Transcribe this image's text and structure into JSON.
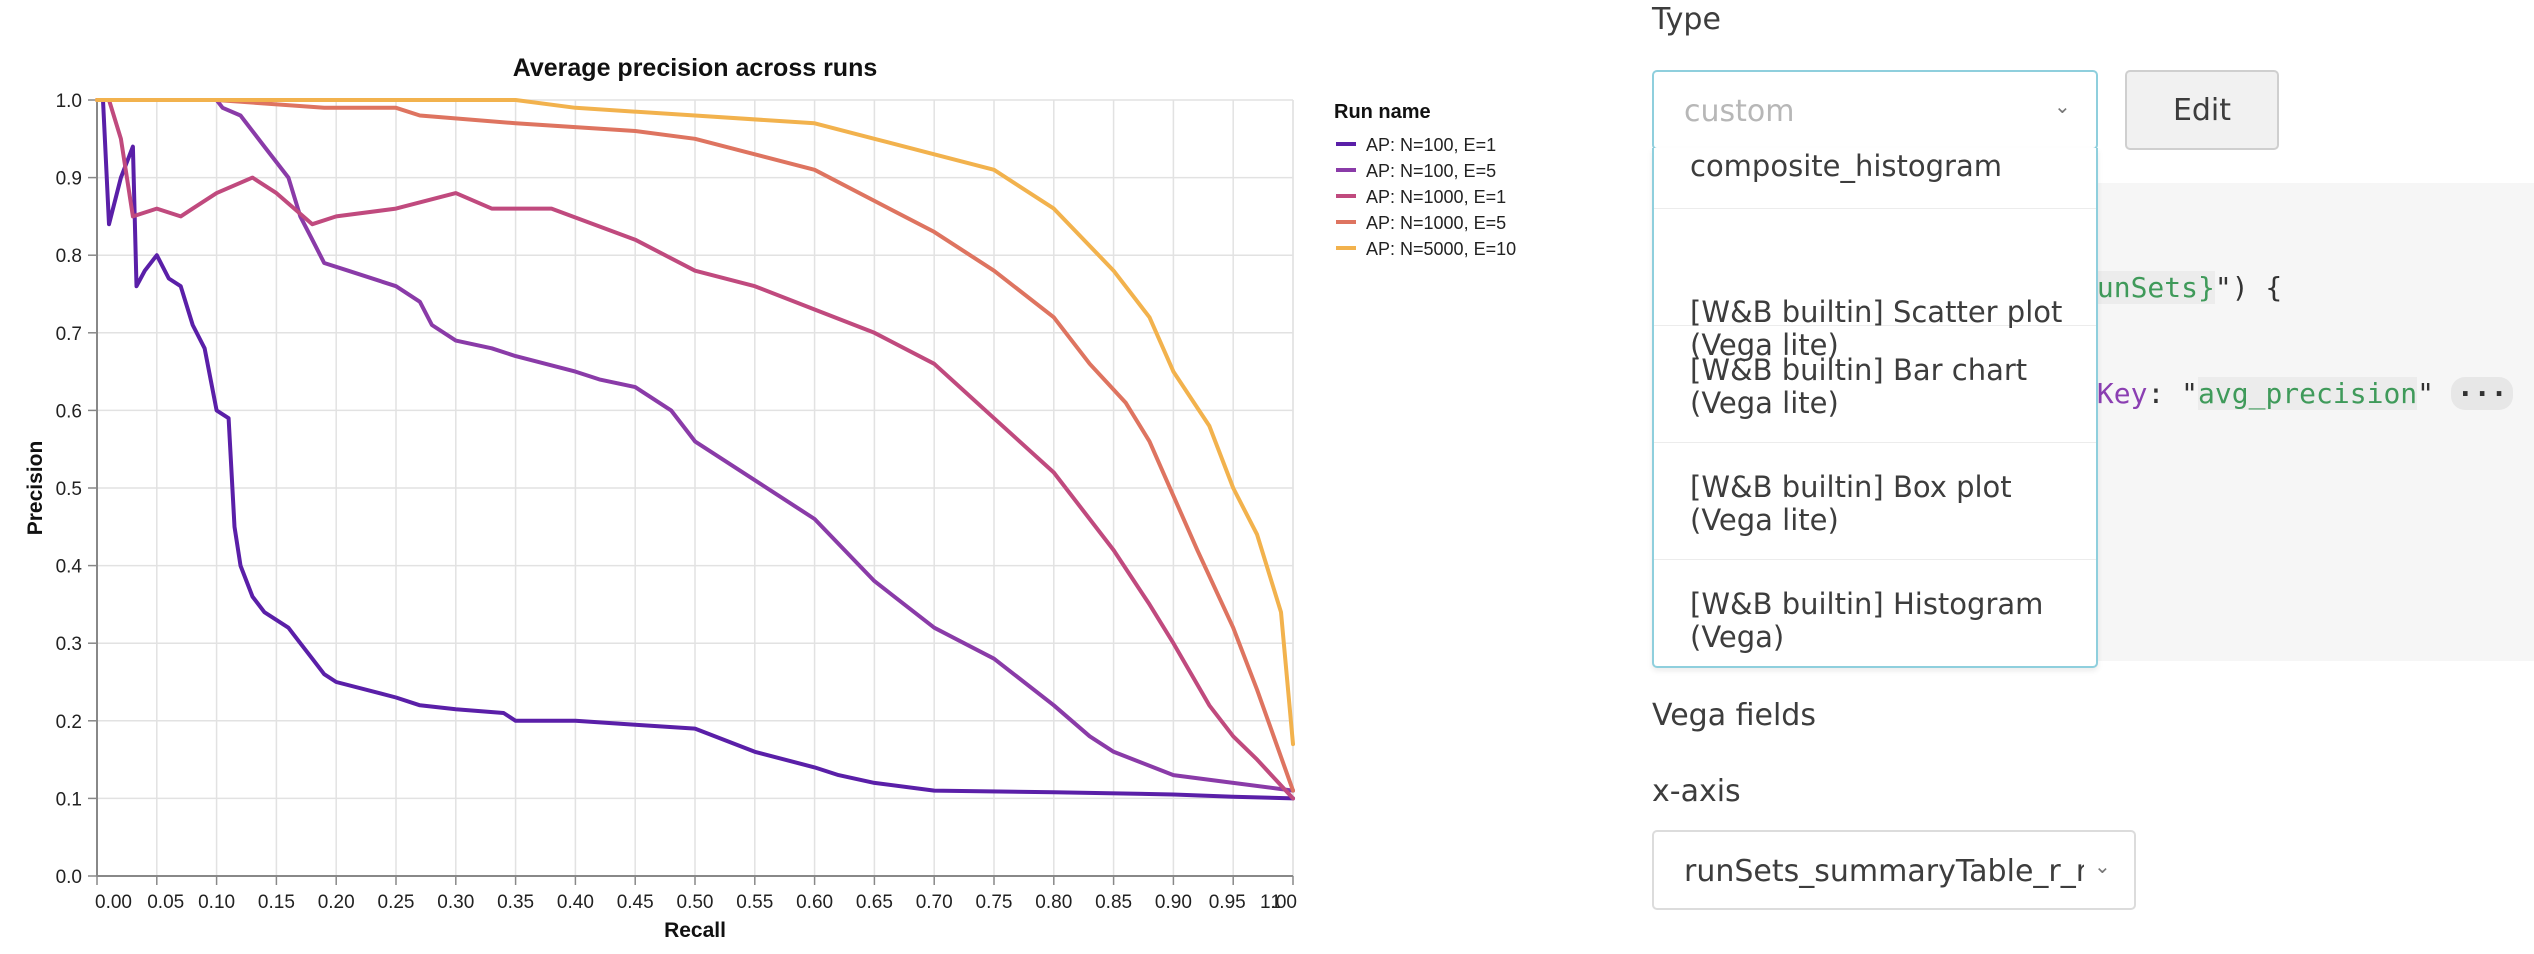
{
  "chart_data": {
    "type": "line",
    "title": "Average precision across runs",
    "xlabel": "Recall",
    "ylabel": "Precision",
    "xlim": [
      0,
      1
    ],
    "ylim": [
      0,
      1
    ],
    "x_ticks": [
      "0.00",
      "0.05",
      "0.10",
      "0.15",
      "0.20",
      "0.25",
      "0.30",
      "0.35",
      "0.40",
      "0.45",
      "0.50",
      "0.55",
      "0.60",
      "0.65",
      "0.70",
      "0.75",
      "0.80",
      "0.85",
      "0.90",
      "0.95",
      "1",
      "1.00"
    ],
    "y_ticks": [
      "0.0",
      "0.1",
      "0.2",
      "0.3",
      "0.4",
      "0.5",
      "0.6",
      "0.7",
      "0.8",
      "0.9",
      "1.0"
    ],
    "grid": true,
    "legend_title": "Run name",
    "legend_position": "right",
    "series": [
      {
        "name": "AP: N=100, E=1",
        "color": "#5a1fa8",
        "points": [
          [
            0.005,
            1.0
          ],
          [
            0.01,
            0.84
          ],
          [
            0.02,
            0.9
          ],
          [
            0.03,
            0.94
          ],
          [
            0.033,
            0.76
          ],
          [
            0.04,
            0.78
          ],
          [
            0.05,
            0.8
          ],
          [
            0.06,
            0.77
          ],
          [
            0.07,
            0.76
          ],
          [
            0.08,
            0.71
          ],
          [
            0.09,
            0.68
          ],
          [
            0.1,
            0.6
          ],
          [
            0.11,
            0.59
          ],
          [
            0.115,
            0.45
          ],
          [
            0.12,
            0.4
          ],
          [
            0.13,
            0.36
          ],
          [
            0.14,
            0.34
          ],
          [
            0.15,
            0.33
          ],
          [
            0.16,
            0.32
          ],
          [
            0.17,
            0.3
          ],
          [
            0.18,
            0.28
          ],
          [
            0.19,
            0.26
          ],
          [
            0.2,
            0.25
          ],
          [
            0.25,
            0.23
          ],
          [
            0.27,
            0.22
          ],
          [
            0.3,
            0.215
          ],
          [
            0.34,
            0.21
          ],
          [
            0.35,
            0.2
          ],
          [
            0.4,
            0.2
          ],
          [
            0.45,
            0.195
          ],
          [
            0.5,
            0.19
          ],
          [
            0.55,
            0.16
          ],
          [
            0.6,
            0.14
          ],
          [
            0.62,
            0.13
          ],
          [
            0.65,
            0.12
          ],
          [
            0.7,
            0.11
          ],
          [
            0.8,
            0.108
          ],
          [
            0.9,
            0.105
          ],
          [
            0.95,
            0.102
          ],
          [
            1.0,
            0.1
          ]
        ]
      },
      {
        "name": "AP: N=100, E=5",
        "color": "#8a3ba8",
        "points": [
          [
            0.0,
            1.0
          ],
          [
            0.1,
            1.0
          ],
          [
            0.105,
            0.99
          ],
          [
            0.12,
            0.98
          ],
          [
            0.14,
            0.94
          ],
          [
            0.16,
            0.9
          ],
          [
            0.17,
            0.85
          ],
          [
            0.18,
            0.82
          ],
          [
            0.19,
            0.79
          ],
          [
            0.21,
            0.78
          ],
          [
            0.25,
            0.76
          ],
          [
            0.27,
            0.74
          ],
          [
            0.28,
            0.71
          ],
          [
            0.3,
            0.69
          ],
          [
            0.33,
            0.68
          ],
          [
            0.35,
            0.67
          ],
          [
            0.4,
            0.65
          ],
          [
            0.42,
            0.64
          ],
          [
            0.45,
            0.63
          ],
          [
            0.48,
            0.6
          ],
          [
            0.5,
            0.56
          ],
          [
            0.55,
            0.51
          ],
          [
            0.6,
            0.46
          ],
          [
            0.65,
            0.38
          ],
          [
            0.7,
            0.32
          ],
          [
            0.75,
            0.28
          ],
          [
            0.8,
            0.22
          ],
          [
            0.83,
            0.18
          ],
          [
            0.85,
            0.16
          ],
          [
            0.9,
            0.13
          ],
          [
            0.95,
            0.12
          ],
          [
            1.0,
            0.11
          ]
        ]
      },
      {
        "name": "AP: N=1000, E=1",
        "color": "#c04a7e",
        "points": [
          [
            0.01,
            1.0
          ],
          [
            0.02,
            0.95
          ],
          [
            0.03,
            0.85
          ],
          [
            0.05,
            0.86
          ],
          [
            0.07,
            0.85
          ],
          [
            0.08,
            0.86
          ],
          [
            0.1,
            0.88
          ],
          [
            0.13,
            0.9
          ],
          [
            0.15,
            0.88
          ],
          [
            0.18,
            0.84
          ],
          [
            0.2,
            0.85
          ],
          [
            0.25,
            0.86
          ],
          [
            0.3,
            0.88
          ],
          [
            0.33,
            0.86
          ],
          [
            0.38,
            0.86
          ],
          [
            0.45,
            0.82
          ],
          [
            0.5,
            0.78
          ],
          [
            0.55,
            0.76
          ],
          [
            0.6,
            0.73
          ],
          [
            0.65,
            0.7
          ],
          [
            0.7,
            0.66
          ],
          [
            0.75,
            0.59
          ],
          [
            0.8,
            0.52
          ],
          [
            0.85,
            0.42
          ],
          [
            0.88,
            0.35
          ],
          [
            0.9,
            0.3
          ],
          [
            0.93,
            0.22
          ],
          [
            0.95,
            0.18
          ],
          [
            0.97,
            0.15
          ],
          [
            1.0,
            0.1
          ]
        ]
      },
      {
        "name": "AP: N=1000, E=5",
        "color": "#de7460",
        "points": [
          [
            0.0,
            1.0
          ],
          [
            0.1,
            1.0
          ],
          [
            0.19,
            0.99
          ],
          [
            0.2,
            0.99
          ],
          [
            0.25,
            0.99
          ],
          [
            0.27,
            0.98
          ],
          [
            0.35,
            0.97
          ],
          [
            0.45,
            0.96
          ],
          [
            0.5,
            0.95
          ],
          [
            0.55,
            0.93
          ],
          [
            0.6,
            0.91
          ],
          [
            0.65,
            0.87
          ],
          [
            0.7,
            0.83
          ],
          [
            0.75,
            0.78
          ],
          [
            0.8,
            0.72
          ],
          [
            0.83,
            0.66
          ],
          [
            0.86,
            0.61
          ],
          [
            0.88,
            0.56
          ],
          [
            0.9,
            0.49
          ],
          [
            0.92,
            0.42
          ],
          [
            0.95,
            0.32
          ],
          [
            0.97,
            0.24
          ],
          [
            1.0,
            0.11
          ]
        ]
      },
      {
        "name": "AP: N=5000, E=10",
        "color": "#f2b24d",
        "points": [
          [
            0.0,
            1.0
          ],
          [
            0.35,
            1.0
          ],
          [
            0.4,
            0.99
          ],
          [
            0.5,
            0.98
          ],
          [
            0.6,
            0.97
          ],
          [
            0.65,
            0.95
          ],
          [
            0.7,
            0.93
          ],
          [
            0.75,
            0.91
          ],
          [
            0.8,
            0.86
          ],
          [
            0.85,
            0.78
          ],
          [
            0.88,
            0.72
          ],
          [
            0.9,
            0.65
          ],
          [
            0.93,
            0.58
          ],
          [
            0.95,
            0.5
          ],
          [
            0.97,
            0.44
          ],
          [
            0.99,
            0.34
          ],
          [
            1.0,
            0.17
          ]
        ]
      }
    ]
  },
  "panel": {
    "type_label": "Type",
    "type_select_value": "custom",
    "edit_button": "Edit",
    "dropdown_items": [
      "composite_histogram",
      "[W&B builtin] Scatter plot\n(Vega lite)",
      "[W&B builtin] Bar chart\n(Vega lite)",
      "[W&B builtin] Box plot\n(Vega lite)",
      "[W&B builtin] Histogram\n(Vega)"
    ],
    "code": {
      "line1_var": "runSets}",
      "line1_rest": "\") {",
      "line2_key": "eKey",
      "line2_colon": ": \"",
      "line2_str": "avg_precision",
      "line2_end": "\" ",
      "line2_ellipsis": "···",
      "line2_close": " )"
    },
    "vega_fields_label": "Vega fields",
    "x_axis_label": "x-axis",
    "x_axis_value": "runSets_summaryTable_r_m"
  }
}
